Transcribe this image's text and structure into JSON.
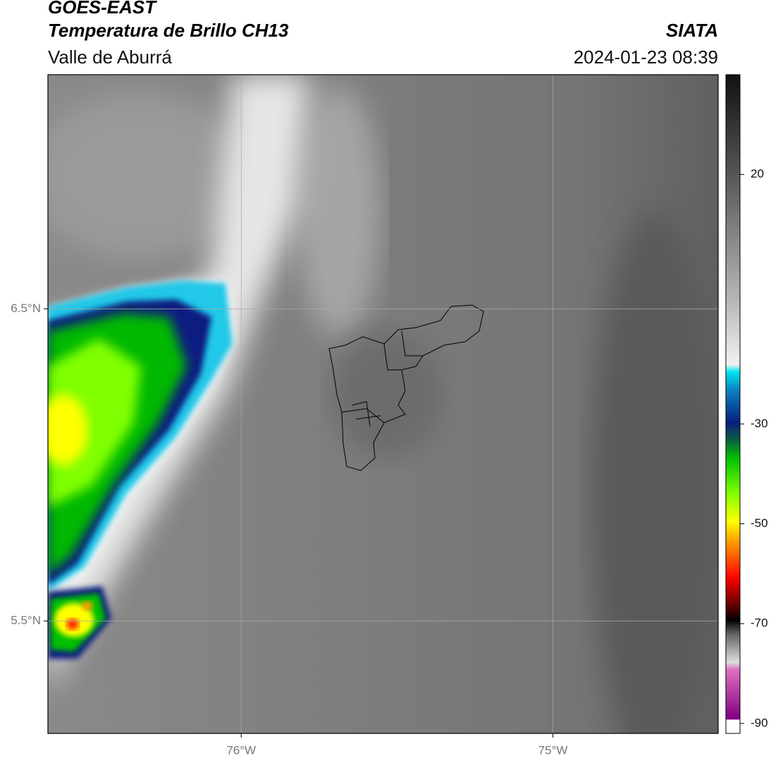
{
  "header": {
    "title": "GOES-EAST",
    "subtitle": "Temperatura de Brillo CH13",
    "region": "Valle de Aburrá",
    "source": "SIATA",
    "datetime": "2024-01-23 08:39"
  },
  "map": {
    "xlim": [
      -76.62,
      -74.47
    ],
    "ylim": [
      5.14,
      7.25
    ],
    "xticks": [
      {
        "value": -76,
        "label": "76°W"
      },
      {
        "value": -75,
        "label": "75°W"
      }
    ],
    "yticks": [
      {
        "value": 6.5,
        "label": "6.5°N"
      },
      {
        "value": 5.5,
        "label": "5.5°N"
      }
    ],
    "grid": true
  },
  "colorbar": {
    "lim": [
      -92,
      40
    ],
    "ticks": [
      20,
      -30,
      -50,
      -70,
      -90
    ]
  }
}
